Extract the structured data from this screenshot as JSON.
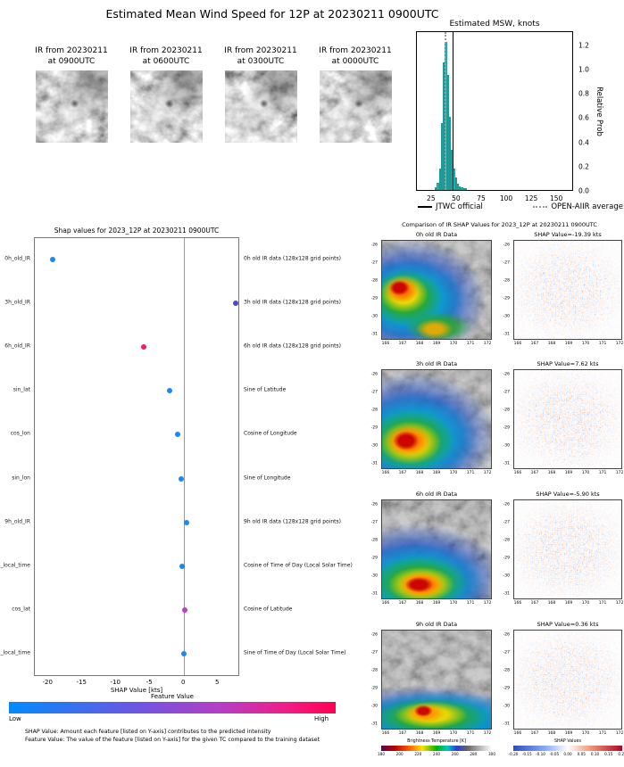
{
  "page_title": "Estimated Mean Wind Speed for 12P at 20230211 0900UTC",
  "ir_thumbnails": [
    {
      "line1": "IR from 20230211",
      "line2": "at 0900UTC"
    },
    {
      "line1": "IR from 20230211",
      "line2": "at 0600UTC"
    },
    {
      "line1": "IR from 20230211",
      "line2": "at 0300UTC"
    },
    {
      "line1": "IR from 20230211",
      "line2": "at 0000UTC"
    }
  ],
  "histogram": {
    "title": "Estimated MSW, knots",
    "ylabel": "Relative Prob",
    "legend": {
      "jtwc": "JTWC official",
      "open_aiir": "OPEN-AIIR average"
    }
  },
  "shap_panel": {
    "title": "Shap values for 2023_12P at 20230211 0900UTC",
    "xlabel": "SHAP Value [kts]",
    "colorbar_title": "Feature Value",
    "colorbar_low": "Low",
    "colorbar_high": "High",
    "footnote1": "SHAP Value: Amount each feature [listed on Y-axis] contributes to the predicted intensity",
    "footnote2": "Feature Value: The value of the feature [listed on Y-axis] for the given TC compared to the training dataset"
  },
  "comparison": {
    "title": "Comparison of IR SHAP Values for 2023_12P at 20230211 0900UTC",
    "rows": [
      {
        "ir_title": "0h old IR Data",
        "shap_title": "SHAP Value=-19.39 kts"
      },
      {
        "ir_title": "3h old IR Data",
        "shap_title": "SHAP Value=7.62 kts"
      },
      {
        "ir_title": "6h old IR Data",
        "shap_title": "SHAP Value=-5.90 kts"
      },
      {
        "ir_title": "9h old IR Data",
        "shap_title": "SHAP Value=0.36 kts"
      }
    ],
    "map_xticks": [
      166,
      167,
      168,
      169,
      170,
      171,
      172
    ],
    "map_yticks": [
      -26,
      -27,
      -28,
      -29,
      -30,
      -31
    ],
    "bt_colorbar_title": "Brightness Temperature [K]",
    "bt_colorbar_ticks": [
      180,
      200,
      220,
      240,
      260,
      280,
      300
    ],
    "shap_colorbar_title": "SHAP Values",
    "shap_colorbar_ticks": [
      "-0.20",
      "-0.15",
      "-0.10",
      "-0.05",
      "0.00",
      "0.05",
      "0.10",
      "0.15",
      "0.20"
    ]
  },
  "chart_data": [
    {
      "type": "bar",
      "name": "msw_histogram",
      "title": "Estimated MSW, knots",
      "xlabel": "",
      "ylabel": "Relative Prob",
      "xlim": [
        10,
        165
      ],
      "ylim": [
        0,
        1.3
      ],
      "xticks": [
        25,
        50,
        75,
        100,
        125,
        150
      ],
      "yticks": [
        0.0,
        0.2,
        0.4,
        0.6,
        0.8,
        1.0,
        1.2
      ],
      "bar_color": "#35c0bd",
      "bin_width": 2,
      "bin_centers": [
        29,
        31,
        33,
        35,
        37,
        39,
        41,
        43,
        45,
        47,
        49,
        51,
        53,
        55,
        57,
        59
      ],
      "values": [
        0.02,
        0.06,
        0.18,
        0.55,
        1.05,
        1.22,
        0.95,
        0.6,
        0.33,
        0.18,
        0.1,
        0.05,
        0.03,
        0.02,
        0.01,
        0.005
      ],
      "jtwc_official_kts": 46,
      "open_aiir_average_kts": 38,
      "legend": [
        "JTWC official",
        "OPEN-AIIR average"
      ]
    },
    {
      "type": "scatter",
      "name": "shap_scatter",
      "title": "Shap values for 2023_12P at 20230211 0900UTC",
      "xlabel": "SHAP Value [kts]",
      "xlim": [
        -22,
        8
      ],
      "xticks": [
        -20,
        -15,
        -10,
        -5,
        0,
        5
      ],
      "colorbar": {
        "title": "Feature Value",
        "low_color": "#008bfb",
        "high_color": "#ff0051"
      },
      "features": [
        {
          "name": "0h_old_IR",
          "description": "0h old IR data (128x128 grid points)",
          "shap_value": -19.39,
          "dot_color": "#1e88f2"
        },
        {
          "name": "3h_old_IR",
          "description": "3h old IR data (128x128 grid points)",
          "shap_value": 7.62,
          "dot_color": "#4f46cf"
        },
        {
          "name": "6h_old_IR",
          "description": "6h old IR data (128x128 grid points)",
          "shap_value": -5.9,
          "dot_color": "#f01d62"
        },
        {
          "name": "sin_lat",
          "description": "Sine of Latitude",
          "shap_value": -2.1,
          "dot_color": "#1e88f2"
        },
        {
          "name": "cos_lon",
          "description": "Cosine of Longitude",
          "shap_value": -1.0,
          "dot_color": "#1e88f2"
        },
        {
          "name": "sin_lon",
          "description": "Sine of Longitude",
          "shap_value": -0.4,
          "dot_color": "#1e88f2"
        },
        {
          "name": "9h_old_IR",
          "description": "9h old IR data (128x128 grid points)",
          "shap_value": 0.36,
          "dot_color": "#1e88f2"
        },
        {
          "name": "cos_local_time",
          "description": "Cosine of Time of Day (Local Solar Time)",
          "shap_value": -0.3,
          "dot_color": "#1e88f2"
        },
        {
          "name": "cos_lat",
          "description": "Cosine of Latitude",
          "shap_value": 0.1,
          "dot_color": "#c03ad2"
        },
        {
          "name": "sin_local_time",
          "description": "Sine of Time of Day (Local Solar Time)",
          "shap_value": 0.0,
          "dot_color": "#1e88f2"
        }
      ]
    }
  ]
}
